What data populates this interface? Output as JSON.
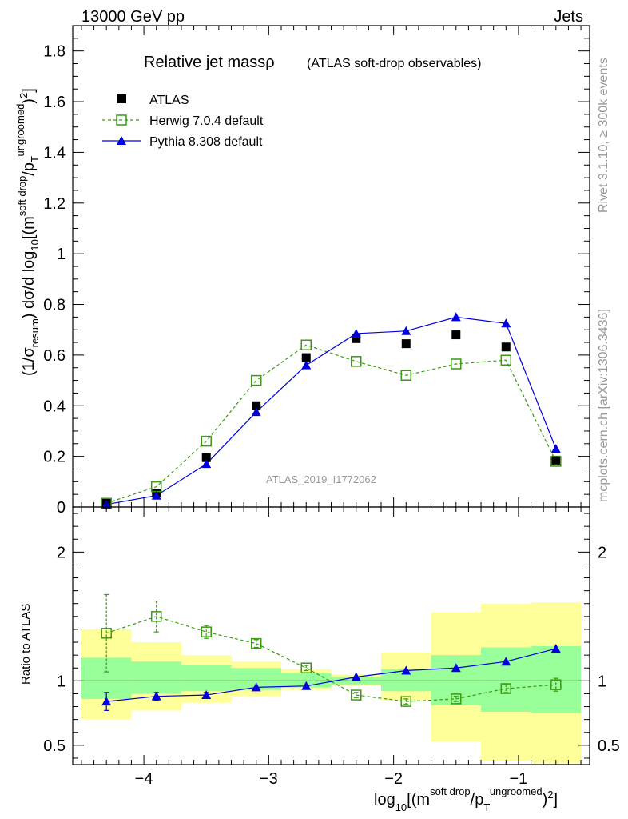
{
  "header": {
    "energy": "13000 GeV pp",
    "category": "Jets"
  },
  "side_labels": {
    "rivet": "Rivet 3.1.10, ≥ 300k events",
    "source": "mcplots.cern.ch [arXiv:1306.3436]"
  },
  "chart_data": {
    "type": "line",
    "title": "Relative jet massρ",
    "subtitle": "(ATLAS soft-drop observables)",
    "analysis_id": "ATLAS_2019_I1772062",
    "xlabel": "log10[(m^soft drop/pT^ungroomed)^2]",
    "ylabel": "(1/σresum) dσ/d log10[(m^soft drop/pT^ungroomed)^2]",
    "ratio_ylabel": "Ratio to ATLAS",
    "xlim": [
      -4.57,
      -0.43
    ],
    "ylim": [
      0,
      1.9
    ],
    "ratio_ylim": [
      0.35,
      2.35
    ],
    "x_ticks": [
      -4,
      -3,
      -2,
      -1
    ],
    "x_tick_labels": [
      "−4",
      "−3",
      "−2",
      "−1"
    ],
    "y_ticks": [
      0,
      0.2,
      0.4,
      0.6,
      0.8,
      1,
      1.2,
      1.4,
      1.6,
      1.8
    ],
    "y_tick_labels": [
      "0",
      "0.2",
      "0.4",
      "0.6",
      "0.8",
      "1",
      "1.2",
      "1.4",
      "1.6",
      "1.8"
    ],
    "ratio_ticks": [
      0.5,
      1,
      2
    ],
    "ratio_tick_labels": [
      "0.5",
      "1",
      "2"
    ],
    "bin_edges": [
      -4.5,
      -4.1,
      -3.7,
      -3.3,
      -2.9,
      -2.5,
      -2.1,
      -1.7,
      -1.3,
      -0.9,
      -0.5
    ],
    "x": [
      -4.3,
      -3.9,
      -3.5,
      -3.1,
      -2.7,
      -2.3,
      -1.9,
      -1.5,
      -1.1,
      -0.7
    ],
    "legend": [
      "ATLAS",
      "Herwig 7.0.4 default",
      "Pythia 8.308 default"
    ],
    "series": [
      {
        "name": "ATLAS",
        "color": "#000000",
        "values": [
          0.015,
          0.055,
          0.195,
          0.4,
          0.59,
          0.665,
          0.645,
          0.68,
          0.632,
          0.185
        ]
      },
      {
        "name": "Herwig 7.0.4 default",
        "color": "#3a9a10",
        "values": [
          0.015,
          0.08,
          0.26,
          0.5,
          0.64,
          0.575,
          0.52,
          0.565,
          0.58,
          0.18
        ]
      },
      {
        "name": "Pythia 8.308 default",
        "color": "#0000dd",
        "values": [
          0.01,
          0.045,
          0.17,
          0.375,
          0.56,
          0.685,
          0.695,
          0.75,
          0.725,
          0.23
        ]
      }
    ],
    "ratio_series": [
      {
        "name": "Herwig 7.0.4 default",
        "values": [
          1.37,
          1.5,
          1.38,
          1.29,
          1.1,
          0.89,
          0.84,
          0.86,
          0.94,
          0.97
        ],
        "err": [
          0.3,
          0.12,
          0.05,
          0.03,
          0.02,
          0.02,
          0.02,
          0.02,
          0.03,
          0.05
        ]
      },
      {
        "name": "Pythia 8.308 default",
        "values": [
          0.84,
          0.88,
          0.89,
          0.95,
          0.96,
          1.03,
          1.08,
          1.1,
          1.15,
          1.25
        ],
        "err": [
          0.07,
          0.03,
          0.02,
          0.0,
          0.0,
          0.0,
          0.0,
          0.0,
          0.0,
          0.0
        ]
      }
    ],
    "band_stat": [
      [
        0.86,
        1.18
      ],
      [
        0.9,
        1.15
      ],
      [
        0.92,
        1.12
      ],
      [
        0.93,
        1.1
      ],
      [
        0.95,
        1.06
      ],
      [
        0.97,
        1.03
      ],
      [
        0.92,
        1.09
      ],
      [
        0.81,
        1.2
      ],
      [
        0.76,
        1.26
      ],
      [
        0.75,
        1.27
      ]
    ],
    "band_total": [
      [
        0.7,
        1.4
      ],
      [
        0.77,
        1.3
      ],
      [
        0.83,
        1.2
      ],
      [
        0.88,
        1.15
      ],
      [
        0.93,
        1.09
      ],
      [
        0.96,
        1.05
      ],
      [
        0.85,
        1.22
      ],
      [
        0.53,
        1.53
      ],
      [
        0.38,
        1.6
      ],
      [
        0.36,
        1.61
      ]
    ]
  }
}
